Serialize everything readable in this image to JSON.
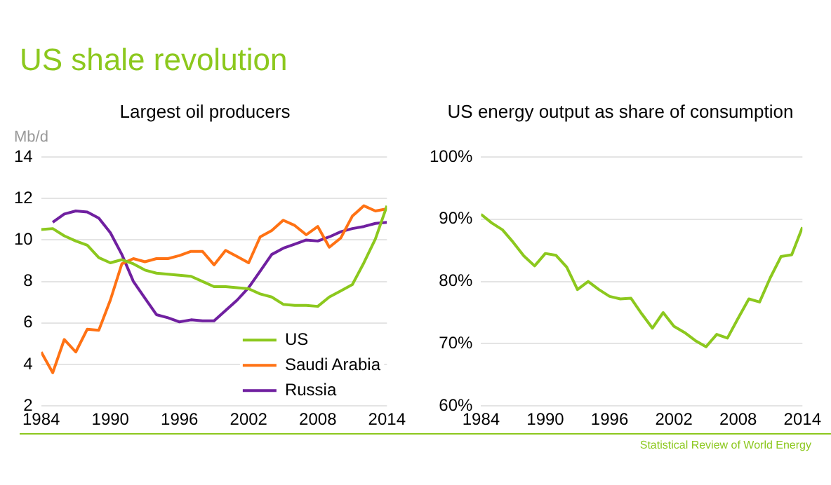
{
  "chart_data": [
    {
      "type": "line",
      "title": "Largest oil producers",
      "ylabel": "Mb/d",
      "annotations": [
        "US shale revolution"
      ],
      "x": [
        1984,
        1985,
        1986,
        1987,
        1988,
        1989,
        1990,
        1991,
        1992,
        1993,
        1994,
        1995,
        1996,
        1997,
        1998,
        1999,
        2000,
        2001,
        2002,
        2003,
        2004,
        2005,
        2006,
        2007,
        2008,
        2009,
        2010,
        2011,
        2012,
        2013,
        2014
      ],
      "series": [
        {
          "name": "US",
          "color": "#8cc81e",
          "values": [
            10.5,
            10.55,
            10.2,
            9.95,
            9.75,
            9.15,
            8.9,
            9.05,
            8.85,
            8.55,
            8.4,
            8.35,
            8.3,
            8.25,
            8.0,
            7.75,
            7.75,
            7.7,
            7.65,
            7.4,
            7.25,
            6.9,
            6.85,
            6.85,
            6.8,
            7.25,
            7.55,
            7.85,
            8.9,
            10.05,
            11.65
          ]
        },
        {
          "name": "Saudi Arabia",
          "color": "#ff7214",
          "values": [
            4.6,
            3.6,
            5.2,
            4.6,
            5.7,
            5.65,
            7.1,
            8.85,
            9.1,
            8.95,
            9.1,
            9.1,
            9.25,
            9.45,
            9.45,
            8.8,
            9.5,
            9.2,
            8.9,
            10.15,
            10.45,
            10.95,
            10.7,
            10.25,
            10.65,
            9.65,
            10.1,
            11.15,
            11.65,
            11.4,
            11.5
          ]
        },
        {
          "name": "Russia",
          "color": "#7020a0",
          "values": [
            null,
            10.85,
            11.25,
            11.4,
            11.35,
            11.05,
            10.35,
            9.3,
            8.0,
            7.2,
            6.4,
            6.25,
            6.05,
            6.15,
            6.1,
            6.1,
            6.6,
            7.1,
            7.7,
            8.5,
            9.3,
            9.6,
            9.8,
            10.0,
            9.95,
            10.15,
            10.4,
            10.55,
            10.65,
            10.8,
            10.85
          ]
        }
      ],
      "xlim": [
        1984,
        2014
      ],
      "xticks": [
        1984,
        1990,
        1996,
        2002,
        2008,
        2014
      ],
      "ylim": [
        2,
        14
      ],
      "yticks": [
        2,
        4,
        6,
        8,
        10,
        12,
        14
      ],
      "grid": "y",
      "legend": "bottom right"
    },
    {
      "type": "line",
      "title": "US energy output as share of consumption",
      "annotations": [
        "Statistical Review of World Energy"
      ],
      "x": [
        1984,
        1985,
        1986,
        1987,
        1988,
        1989,
        1990,
        1991,
        1992,
        1993,
        1994,
        1995,
        1996,
        1997,
        1998,
        1999,
        2000,
        2001,
        2002,
        2003,
        2004,
        2005,
        2006,
        2007,
        2008,
        2009,
        2010,
        2011,
        2012,
        2013,
        2014
      ],
      "series": [
        {
          "color": "#8cc81e",
          "values": [
            90.8,
            89.4,
            88.3,
            86.3,
            84.1,
            82.5,
            84.5,
            84.2,
            82.3,
            78.7,
            80.0,
            78.7,
            77.6,
            77.2,
            77.3,
            74.8,
            72.5,
            75.0,
            72.8,
            71.8,
            70.5,
            69.5,
            71.5,
            70.9,
            74.1,
            77.2,
            76.7,
            80.6,
            84.0,
            84.3,
            88.7
          ]
        }
      ],
      "xlim": [
        1984,
        2014
      ],
      "xticks": [
        1984,
        1990,
        1996,
        2002,
        2008,
        2014
      ],
      "ylim": [
        60,
        100
      ],
      "yticks": [
        {
          "value": 60,
          "label": "60%"
        },
        {
          "value": 70,
          "label": "70%"
        },
        {
          "value": 80,
          "label": "80%"
        },
        {
          "value": 90,
          "label": "90%"
        },
        {
          "value": 100,
          "label": "100%"
        }
      ],
      "grid": "y"
    }
  ]
}
